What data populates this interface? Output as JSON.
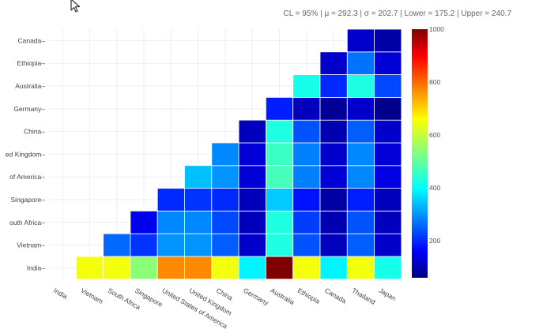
{
  "stats_line": "CL = 95% | μ = 292.3 | σ = 202.7 | Lower = 175.2 | Upper = 240.7",
  "cursor_icon": "mouse-pointer-icon",
  "chart_data": {
    "type": "heatmap",
    "title": "",
    "xlabel": "",
    "ylabel": "",
    "x_categories": [
      "India",
      "Vietnam",
      "South Africa",
      "Singapore",
      "United States of America",
      "United Kingdom",
      "China",
      "Germany",
      "Australia",
      "Ethiopia",
      "Canada",
      "Thailand",
      "Japan"
    ],
    "y_categories": [
      "India",
      "Vietnam",
      "South Africa",
      "Singapore",
      "United States of America",
      "United Kingdom",
      "China",
      "Germany",
      "Australia",
      "Ethiopia",
      "Canada"
    ],
    "y_tick_labels_visible": [
      "India",
      "Vietnam",
      "outh Africa",
      "Singapore",
      "of America",
      "ed Kingdom",
      "China",
      "Germany",
      "Australia",
      "Ethiopia",
      "Canada"
    ],
    "colorscale": "Jet",
    "zmin": 60,
    "zmax": 1000,
    "colorbar_ticks": [
      200,
      400,
      600,
      800,
      1000
    ],
    "grid": true,
    "rows": [
      {
        "y": "India",
        "values": [
          null,
          650,
          650,
          540,
          770,
          770,
          650,
          390,
          1000,
          650,
          390,
          650,
          420
        ]
      },
      {
        "y": "Vietnam",
        "values": [
          null,
          null,
          260,
          210,
          300,
          300,
          250,
          120,
          430,
          240,
          110,
          250,
          120
        ]
      },
      {
        "y": "South Africa",
        "values": [
          null,
          null,
          null,
          150,
          290,
          290,
          230,
          110,
          430,
          220,
          100,
          240,
          110
        ]
      },
      {
        "y": "Singapore",
        "values": [
          null,
          null,
          null,
          null,
          200,
          210,
          200,
          110,
          350,
          180,
          90,
          190,
          110
        ]
      },
      {
        "y": "United States of America",
        "values": [
          null,
          null,
          null,
          null,
          null,
          340,
          300,
          130,
          470,
          280,
          130,
          290,
          140
        ]
      },
      {
        "y": "United Kingdom",
        "values": [
          null,
          null,
          null,
          null,
          null,
          null,
          290,
          130,
          460,
          280,
          120,
          290,
          130
        ]
      },
      {
        "y": "China",
        "values": [
          null,
          null,
          null,
          null,
          null,
          null,
          null,
          110,
          430,
          240,
          100,
          250,
          120
        ]
      },
      {
        "y": "Germany",
        "values": [
          null,
          null,
          null,
          null,
          null,
          null,
          null,
          null,
          190,
          110,
          80,
          120,
          70
        ]
      },
      {
        "y": "Australia",
        "values": [
          null,
          null,
          null,
          null,
          null,
          null,
          null,
          null,
          null,
          420,
          200,
          430,
          230
        ]
      },
      {
        "y": "Ethiopia",
        "values": [
          null,
          null,
          null,
          null,
          null,
          null,
          null,
          null,
          null,
          null,
          120,
          270,
          130
        ]
      },
      {
        "y": "Canada",
        "values": [
          null,
          null,
          null,
          null,
          null,
          null,
          null,
          null,
          null,
          null,
          null,
          120,
          90
        ]
      }
    ]
  }
}
